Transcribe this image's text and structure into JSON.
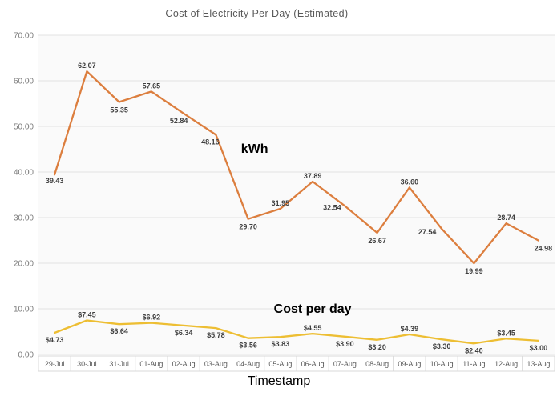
{
  "chart_data": {
    "type": "line",
    "title": "Cost of Electricity Per Day (Estimated)",
    "xlabel": "Timestamp",
    "ylabel": "",
    "ylim": [
      0,
      70
    ],
    "grid": true,
    "legend_position": "none (inline series annotations)",
    "yticks": [
      {
        "value": 70,
        "label": "70.00"
      },
      {
        "value": 60,
        "label": "60.00"
      },
      {
        "value": 50,
        "label": "50.00"
      },
      {
        "value": 40,
        "label": "40.00"
      },
      {
        "value": 30,
        "label": "30.00"
      },
      {
        "value": 20,
        "label": "20.00"
      },
      {
        "value": 10,
        "label": "10.00"
      },
      {
        "value": 0,
        "label": "0.00"
      }
    ],
    "categories": [
      "29-Jul",
      "30-Jul",
      "31-Jul",
      "01-Aug",
      "02-Aug",
      "03-Aug",
      "04-Aug",
      "05-Aug",
      "06-Aug",
      "07-Aug",
      "08-Aug",
      "09-Aug",
      "10-Aug",
      "11-Aug",
      "12-Aug",
      "13-Aug"
    ],
    "series": [
      {
        "name": "kWh",
        "color": "#DC7E3E",
        "values": [
          39.43,
          62.07,
          55.35,
          57.65,
          52.84,
          48.16,
          29.7,
          31.95,
          37.89,
          32.54,
          26.67,
          36.6,
          27.54,
          19.99,
          28.74,
          24.98
        ],
        "labels": [
          "39.43",
          "62.07",
          "55.35",
          "57.65",
          "52.84",
          "48.16",
          "29.70",
          "31.95",
          "37.89",
          "32.54",
          "26.67",
          "36.60",
          "27.54",
          "19.99",
          "28.74",
          "24.98"
        ],
        "label_offsets": [
          [
            0,
            8
          ],
          [
            0,
            -7
          ],
          [
            0,
            10
          ],
          [
            0,
            -7
          ],
          [
            -6,
            9
          ],
          [
            -7,
            9
          ],
          [
            0,
            10
          ],
          [
            0,
            -7
          ],
          [
            0,
            -7
          ],
          [
            -16,
            2
          ],
          [
            0,
            10
          ],
          [
            0,
            -7
          ],
          [
            -18,
            4
          ],
          [
            0,
            10
          ],
          [
            0,
            -7
          ],
          [
            6,
            10
          ]
        ],
        "annotation": {
          "text": "kWh",
          "x_index": 6.2,
          "value": 44.2
        }
      },
      {
        "name": "Cost per day",
        "color": "#EDBE33",
        "values": [
          4.73,
          7.45,
          6.64,
          6.92,
          6.34,
          5.78,
          3.56,
          3.83,
          4.55,
          3.9,
          3.2,
          4.39,
          3.3,
          2.4,
          3.45,
          3.0
        ],
        "labels": [
          "$4.73",
          "$7.45",
          "$6.64",
          "$6.92",
          "$6.34",
          "$5.78",
          "$3.56",
          "$3.83",
          "$4.55",
          "$3.90",
          "$3.20",
          "$4.39",
          "$3.30",
          "$2.40",
          "$3.45",
          "$3.00"
        ],
        "label_offsets": [
          [
            0,
            9
          ],
          [
            0,
            -7
          ],
          [
            0,
            9
          ],
          [
            0,
            -7
          ],
          [
            0,
            9
          ],
          [
            0,
            9
          ],
          [
            0,
            9
          ],
          [
            0,
            9
          ],
          [
            0,
            -7
          ],
          [
            0,
            9
          ],
          [
            0,
            9
          ],
          [
            0,
            -7
          ],
          [
            0,
            9
          ],
          [
            0,
            9
          ],
          [
            0,
            -7
          ],
          [
            0,
            9
          ]
        ],
        "annotation": {
          "text": "Cost per day",
          "x_index": 8.0,
          "value": 9.1
        }
      }
    ],
    "styles": {
      "title_color": "#595959",
      "ytick_color": "#7a7a7a",
      "xtick_color": "#595959",
      "data_label_color": "#3f3f3f",
      "grid_color": "#e3e3e3",
      "plot_bg": "#fafafa",
      "axis_cell_border": "#d9d9d9",
      "axis_cell_bg": "#ffffff",
      "annotation_color": "#000000"
    }
  }
}
